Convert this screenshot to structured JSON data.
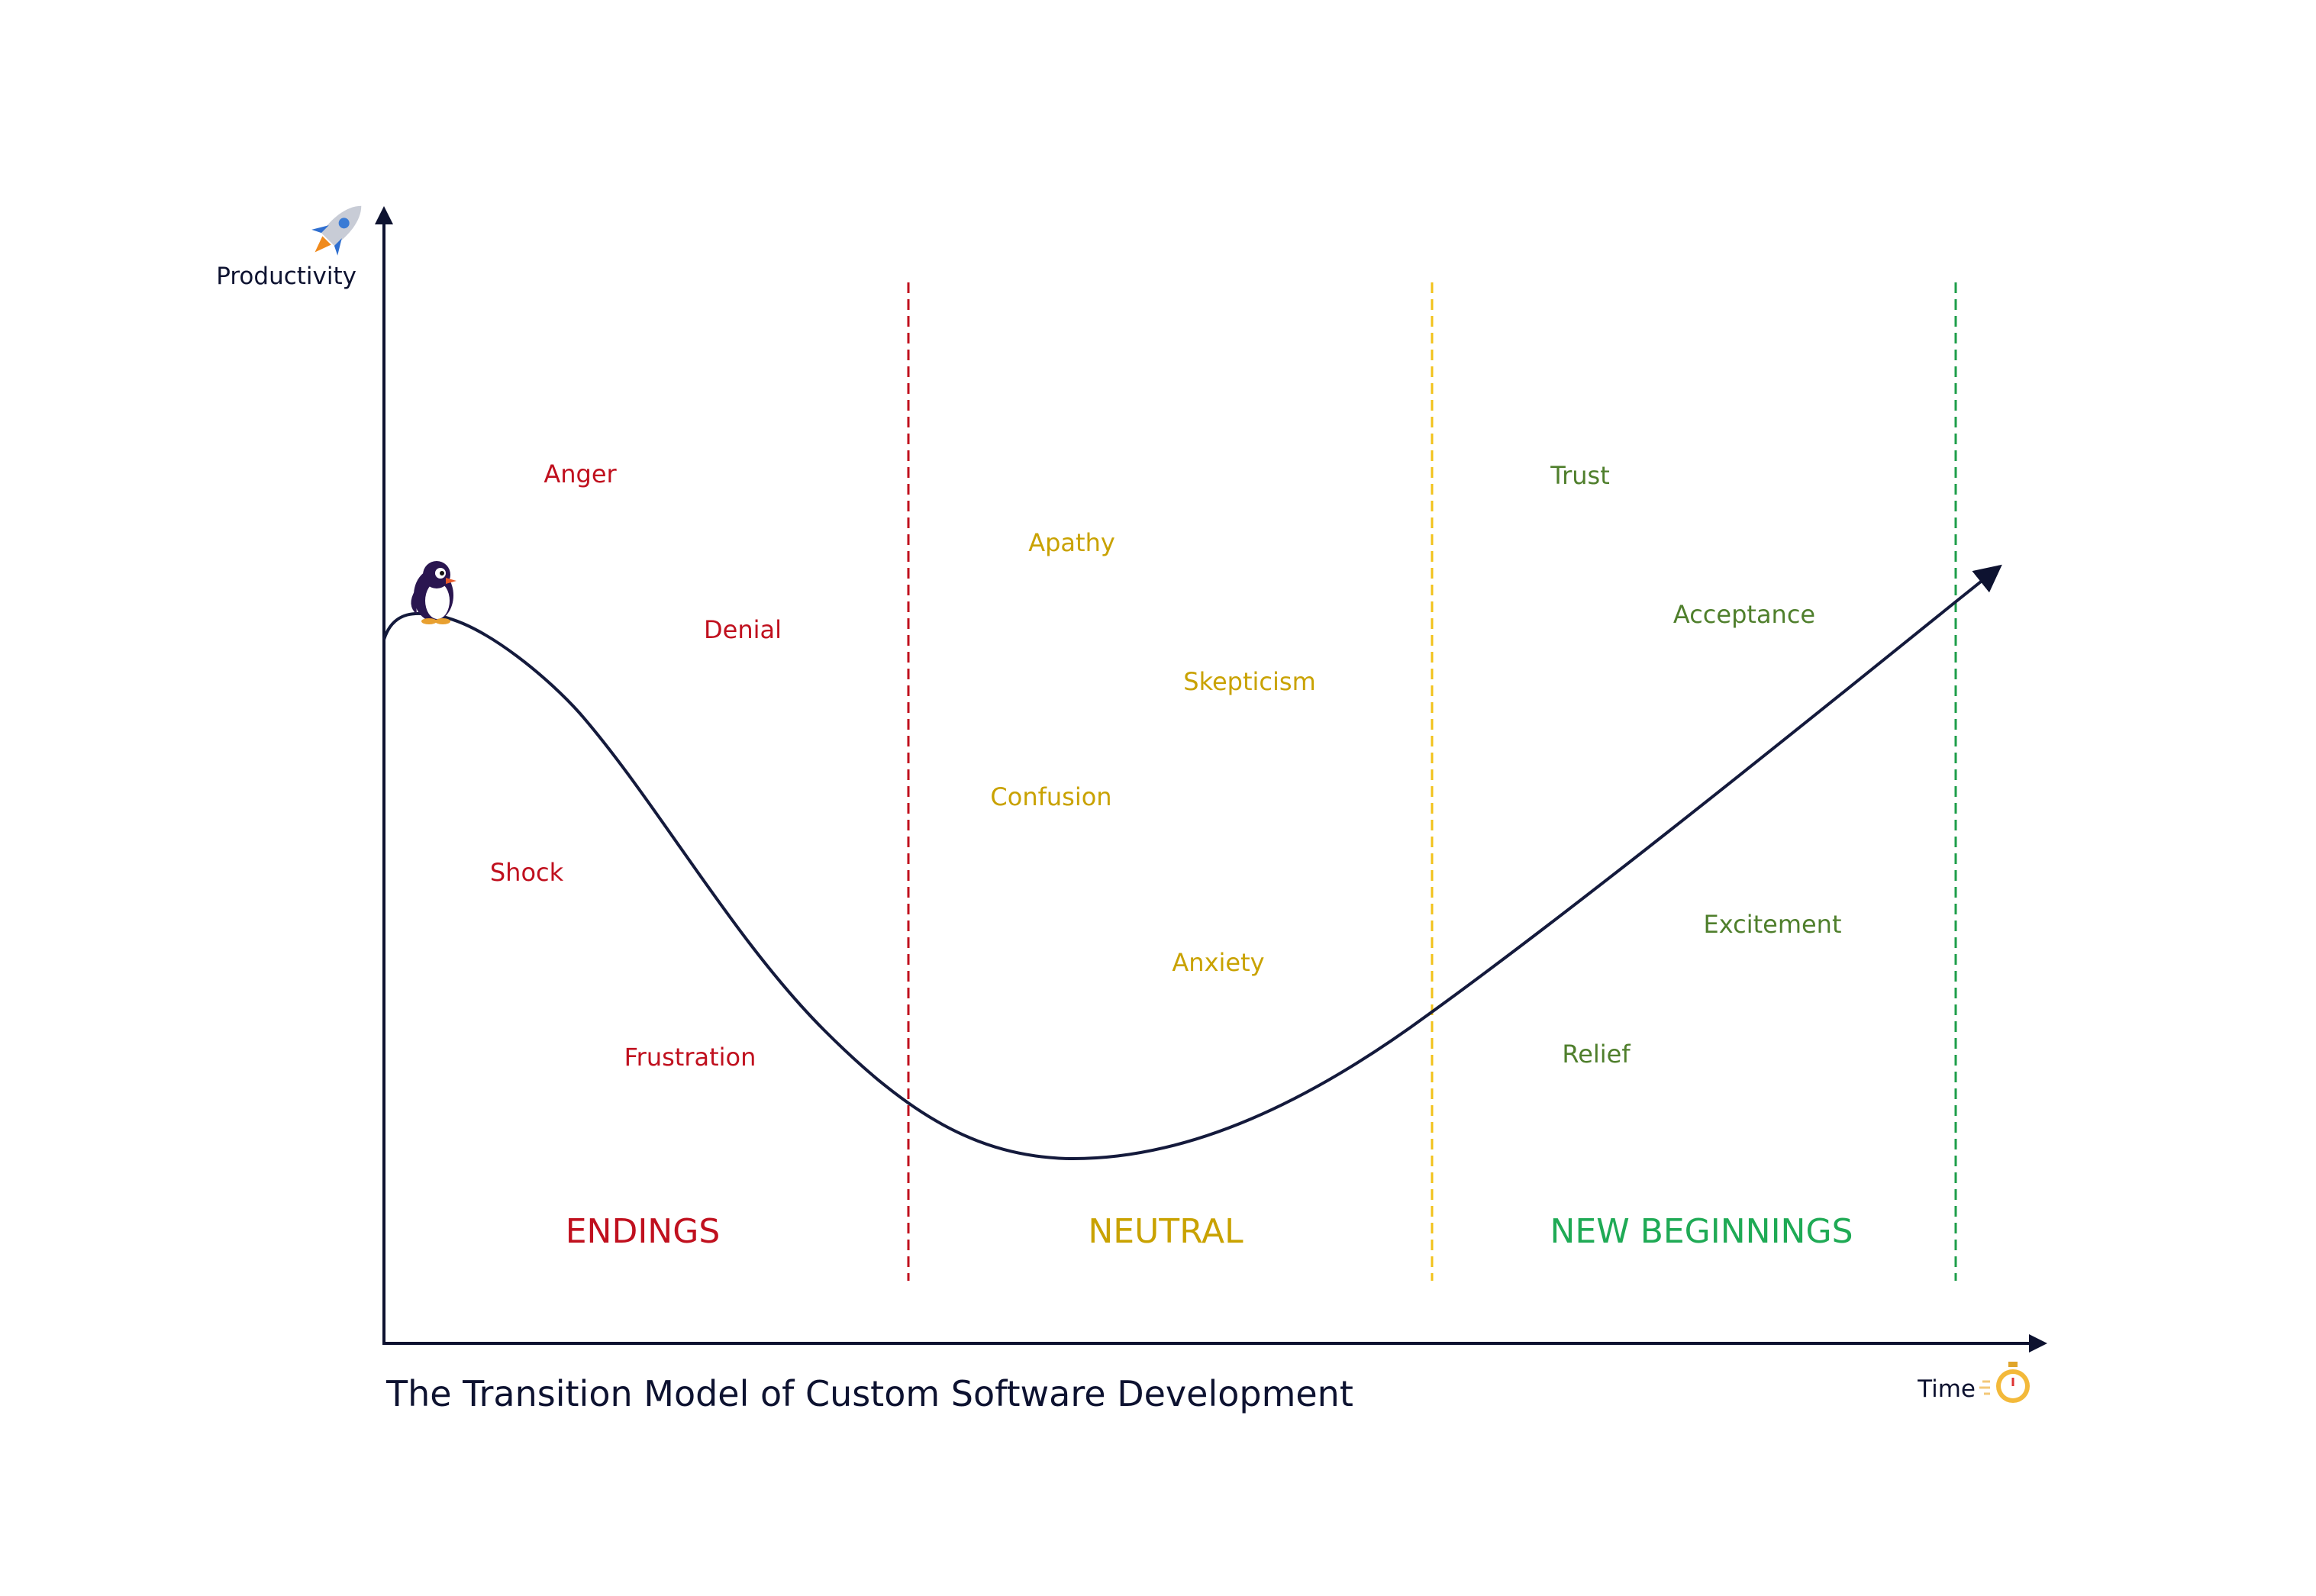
{
  "title": "The Transition Model of Custom Software Development",
  "axes": {
    "y_label": "Productivity",
    "x_label": "Time",
    "y_icon": "rocket-icon",
    "x_icon": "stopwatch-icon"
  },
  "mascot_icon": "penguin-icon",
  "colors": {
    "axis": "#0d1230",
    "curve": "#141a3c",
    "endings": "#c0101e",
    "neutral": "#c9a200",
    "divider_neutral": "#f2c21a",
    "new_beginnings_label": "#1faa55",
    "new_beginnings_emotions": "#4f7f2c",
    "divider_new": "#1e9e4a"
  },
  "phases": [
    {
      "label": "ENDINGS",
      "color_key": "endings"
    },
    {
      "label": "NEUTRAL",
      "color_key": "neutral"
    },
    {
      "label": "NEW BEGINNINGS",
      "color_key": "new_beginnings_label"
    }
  ],
  "emotions": {
    "endings": [
      "Anger",
      "Denial",
      "Shock",
      "Frustration"
    ],
    "neutral": [
      "Apathy",
      "Skepticism",
      "Confusion",
      "Anxiety"
    ],
    "new_beginnings": [
      "Trust",
      "Acceptance",
      "Excitement",
      "Relief"
    ]
  }
}
